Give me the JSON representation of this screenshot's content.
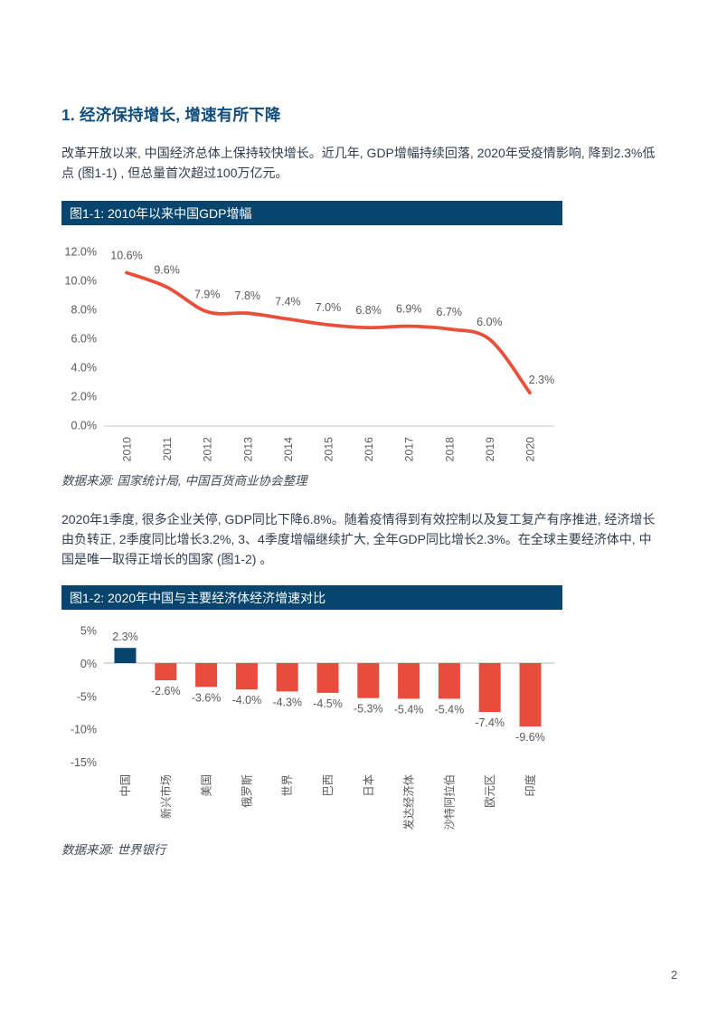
{
  "page": {
    "number": "2"
  },
  "section": {
    "heading": "1. 经济保持增长, 增速有所下降",
    "paragraph1": "改革开放以来, 中国经济总体上保持较快增长。近几年, GDP增幅持续回落, 2020年受疫情影响, 降到2.3%低点 (图1-1) , 但总量首次超过100万亿元。",
    "paragraph2": "2020年1季度, 很多企业关停, GDP同比下降6.8%。随着疫情得到有效控制以及复工复产有序推进, 经济增长由负转正, 2季度同比增长3.2%, 3、4季度增幅继续扩大, 全年GDP同比增长2.3%。在全球主要经济体中, 中国是唯一取得正增长的国家 (图1-2) 。"
  },
  "chart_data": [
    {
      "type": "line",
      "title": "图1-1: 2010年以来中国GDP增幅",
      "x": [
        "2010",
        "2011",
        "2012",
        "2013",
        "2014",
        "2015",
        "2016",
        "2017",
        "2018",
        "2019",
        "2020"
      ],
      "values": [
        10.6,
        9.6,
        7.9,
        7.8,
        7.4,
        7.0,
        6.8,
        6.9,
        6.7,
        6.0,
        2.3
      ],
      "point_labels": [
        "10.6%",
        "9.6%",
        "7.9%",
        "7.8%",
        "7.4%",
        "7.0%",
        "6.8%",
        "6.9%",
        "6.7%",
        "6.0%",
        "2.3%"
      ],
      "yticks": [
        "12.0%",
        "10.0%",
        "8.0%",
        "6.0%",
        "4.0%",
        "2.0%",
        "0.0%"
      ],
      "ylim": [
        0,
        12
      ],
      "xlabel": "",
      "ylabel": "",
      "grid": false,
      "legend": "none",
      "source": "数据来源: 国家统计局, 中国百货商业协会整理"
    },
    {
      "type": "bar",
      "title": "图1-2: 2020年中国与主要经济体经济增速对比",
      "categories": [
        "中国",
        "新兴市场",
        "美国",
        "俄罗斯",
        "世界",
        "巴西",
        "日本",
        "发达经济体",
        "沙特阿拉伯",
        "欧元区",
        "印度"
      ],
      "values": [
        2.3,
        -2.6,
        -3.6,
        -4.0,
        -4.3,
        -4.5,
        -5.3,
        -5.4,
        -5.4,
        -7.4,
        -9.6
      ],
      "bar_labels": [
        "2.3%",
        "-2.6%",
        "-3.6%",
        "-4.0%",
        "-4.3%",
        "-4.5%",
        "-5.3%",
        "-5.4%",
        "-5.4%",
        "-7.4%",
        "-9.6%"
      ],
      "yticks": [
        "5%",
        "0%",
        "-5%",
        "-10%",
        "-15%"
      ],
      "ylim": [
        -15,
        5
      ],
      "xlabel": "",
      "ylabel": "",
      "grid": false,
      "legend": "none",
      "source": "数据来源: 世界银行"
    }
  ],
  "colors": {
    "dark_blue": "#07456E",
    "heading_blue": "#0E4D7C",
    "body_text": "#313D4F",
    "line_red": "#E9503C",
    "bar_negative_red": "#E74C3C",
    "bar_positive_blue": "#07456E",
    "axis_label_gray": "#595959",
    "baseline_gray": "#D6DBDF",
    "page_number_gray": "#44546A"
  }
}
